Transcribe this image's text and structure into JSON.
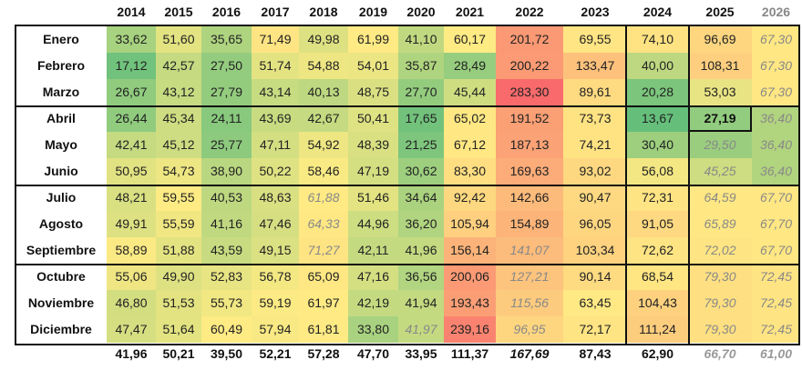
{
  "years": [
    "2014",
    "2015",
    "2016",
    "2017",
    "2018",
    "2019",
    "2020",
    "2021",
    "2022",
    "2023",
    "2024",
    "2025",
    "2026"
  ],
  "months": [
    "Enero",
    "Febrero",
    "Marzo",
    "Abril",
    "Mayo",
    "Junio",
    "Julio",
    "Agosto",
    "Septiembre",
    "Octubre",
    "Noviembre",
    "Diciembre"
  ],
  "rows": [
    [
      "33,62",
      "51,60",
      "35,65",
      "71,49",
      "49,98",
      "61,99",
      "41,10",
      "60,17",
      "201,72",
      "69,55",
      "74,10",
      "96,69",
      "67,30"
    ],
    [
      "17,12",
      "42,57",
      "27,50",
      "51,74",
      "54,88",
      "54,01",
      "35,87",
      "28,49",
      "200,22",
      "133,47",
      "40,00",
      "108,31",
      "67,30"
    ],
    [
      "26,67",
      "43,12",
      "27,79",
      "43,14",
      "40,13",
      "48,75",
      "27,70",
      "45,44",
      "283,30",
      "89,61",
      "20,28",
      "53,03",
      "67,30"
    ],
    [
      "26,44",
      "45,34",
      "24,11",
      "43,69",
      "42,67",
      "50,41",
      "17,65",
      "65,02",
      "191,52",
      "73,73",
      "13,67",
      "27,19",
      "36,40"
    ],
    [
      "42,41",
      "45,12",
      "25,77",
      "47,11",
      "54,92",
      "48,39",
      "21,25",
      "67,12",
      "187,13",
      "74,21",
      "30,40",
      "29,50",
      "36,40"
    ],
    [
      "50,95",
      "54,73",
      "38,90",
      "50,22",
      "58,46",
      "47,19",
      "30,62",
      "83,30",
      "169,63",
      "93,02",
      "56,08",
      "45,25",
      "36,40"
    ],
    [
      "48,21",
      "59,55",
      "40,53",
      "48,63",
      "61,88",
      "51,46",
      "34,64",
      "92,42",
      "142,66",
      "90,47",
      "72,31",
      "64,59",
      "67,70"
    ],
    [
      "49,91",
      "55,59",
      "41,16",
      "47,46",
      "64,33",
      "44,96",
      "36,20",
      "105,94",
      "154,89",
      "96,05",
      "91,05",
      "65,89",
      "67,70"
    ],
    [
      "58,89",
      "51,88",
      "43,59",
      "49,15",
      "71,27",
      "42,11",
      "41,96",
      "156,14",
      "141,07",
      "103,34",
      "72,62",
      "72,02",
      "67,70"
    ],
    [
      "55,06",
      "49,90",
      "52,83",
      "56,78",
      "65,09",
      "47,16",
      "36,56",
      "200,06",
      "127,21",
      "90,14",
      "68,54",
      "79,30",
      "72,45"
    ],
    [
      "46,80",
      "51,53",
      "55,73",
      "59,19",
      "61,97",
      "42,19",
      "41,94",
      "193,43",
      "115,56",
      "63,45",
      "104,43",
      "79,30",
      "72,45"
    ],
    [
      "47,47",
      "51,64",
      "60,49",
      "57,94",
      "61,81",
      "33,80",
      "41,97",
      "239,16",
      "96,95",
      "72,17",
      "111,24",
      "79,30",
      "72,45"
    ]
  ],
  "italic_cells": [
    [
      0,
      12
    ],
    [
      1,
      12
    ],
    [
      2,
      12
    ],
    [
      3,
      12
    ],
    [
      4,
      11
    ],
    [
      4,
      12
    ],
    [
      5,
      11
    ],
    [
      5,
      12
    ],
    [
      6,
      4
    ],
    [
      6,
      11
    ],
    [
      6,
      12
    ],
    [
      7,
      4
    ],
    [
      7,
      11
    ],
    [
      7,
      12
    ],
    [
      8,
      4
    ],
    [
      8,
      8
    ],
    [
      8,
      11
    ],
    [
      8,
      12
    ],
    [
      9,
      8
    ],
    [
      9,
      11
    ],
    [
      9,
      12
    ],
    [
      10,
      8
    ],
    [
      10,
      11
    ],
    [
      10,
      12
    ],
    [
      11,
      6
    ],
    [
      11,
      8
    ],
    [
      11,
      11
    ],
    [
      11,
      12
    ]
  ],
  "highlight_cell": [
    3,
    11
  ],
  "totals": [
    "41,96",
    "50,21",
    "39,50",
    "52,21",
    "57,28",
    "47,70",
    "33,95",
    "111,37",
    "167,69",
    "87,43",
    "62,90",
    "66,70",
    "61,00"
  ],
  "italic_totals": [
    8,
    11,
    12
  ],
  "colors": {
    "scale_low": "#63be7b",
    "scale_mid": "#ffeb84",
    "scale_high": "#f8696b",
    "border": "#111111"
  }
}
